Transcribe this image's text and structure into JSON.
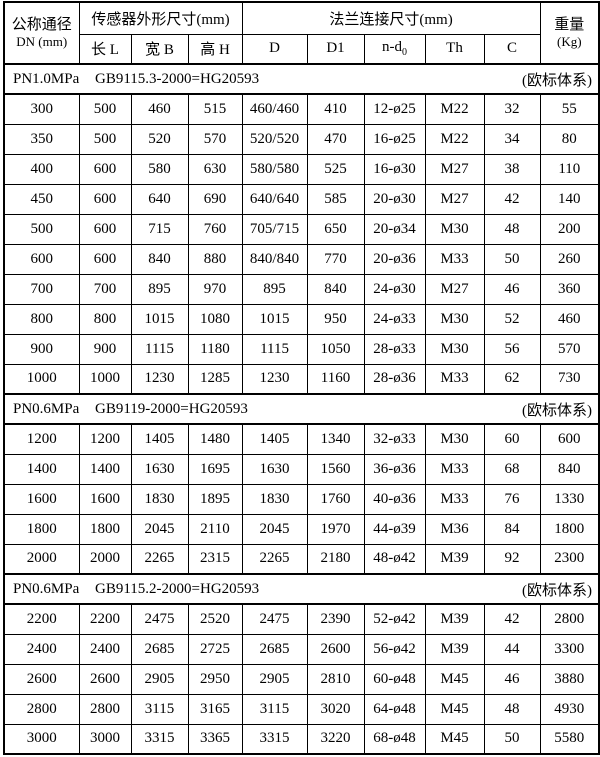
{
  "table": {
    "header": {
      "dn_title": "公称通径",
      "dn_sub": "DN (mm)",
      "sensor_group": "传感器外形尺寸(mm)",
      "flange_group": "法兰连接尺寸(mm)",
      "weight_title": "重量",
      "weight_sub": "(Kg)",
      "length": "长 L",
      "width": "宽 B",
      "height": "高 H",
      "d": "D",
      "d1": "D1",
      "ndo_main": "n-d",
      "ndo_sub": "0",
      "th": "Th",
      "c": "C"
    },
    "sections": [
      {
        "pn": "PN1.0MPa",
        "standard": "GB9115.3-2000=HG20593",
        "system": "(欧标体系)",
        "rows": [
          [
            "300",
            "500",
            "460",
            "515",
            "460/460",
            "410",
            "12-ø25",
            "M22",
            "32",
            "55"
          ],
          [
            "350",
            "500",
            "520",
            "570",
            "520/520",
            "470",
            "16-ø25",
            "M22",
            "34",
            "80"
          ],
          [
            "400",
            "600",
            "580",
            "630",
            "580/580",
            "525",
            "16-ø30",
            "M27",
            "38",
            "110"
          ],
          [
            "450",
            "600",
            "640",
            "690",
            "640/640",
            "585",
            "20-ø30",
            "M27",
            "42",
            "140"
          ],
          [
            "500",
            "600",
            "715",
            "760",
            "705/715",
            "650",
            "20-ø34",
            "M30",
            "48",
            "200"
          ],
          [
            "600",
            "600",
            "840",
            "880",
            "840/840",
            "770",
            "20-ø36",
            "M33",
            "50",
            "260"
          ],
          [
            "700",
            "700",
            "895",
            "970",
            "895",
            "840",
            "24-ø30",
            "M27",
            "46",
            "360"
          ],
          [
            "800",
            "800",
            "1015",
            "1080",
            "1015",
            "950",
            "24-ø33",
            "M30",
            "52",
            "460"
          ],
          [
            "900",
            "900",
            "1115",
            "1180",
            "1115",
            "1050",
            "28-ø33",
            "M30",
            "56",
            "570"
          ],
          [
            "1000",
            "1000",
            "1230",
            "1285",
            "1230",
            "1160",
            "28-ø36",
            "M33",
            "62",
            "730"
          ]
        ]
      },
      {
        "pn": "PN0.6MPa",
        "standard": "GB9119-2000=HG20593",
        "system": "(欧标体系)",
        "rows": [
          [
            "1200",
            "1200",
            "1405",
            "1480",
            "1405",
            "1340",
            "32-ø33",
            "M30",
            "60",
            "600"
          ],
          [
            "1400",
            "1400",
            "1630",
            "1695",
            "1630",
            "1560",
            "36-ø36",
            "M33",
            "68",
            "840"
          ],
          [
            "1600",
            "1600",
            "1830",
            "1895",
            "1830",
            "1760",
            "40-ø36",
            "M33",
            "76",
            "1330"
          ],
          [
            "1800",
            "1800",
            "2045",
            "2110",
            "2045",
            "1970",
            "44-ø39",
            "M36",
            "84",
            "1800"
          ],
          [
            "2000",
            "2000",
            "2265",
            "2315",
            "2265",
            "2180",
            "48-ø42",
            "M39",
            "92",
            "2300"
          ]
        ]
      },
      {
        "pn": "PN0.6MPa",
        "standard": "GB9115.2-2000=HG20593",
        "system": "(欧标体系)",
        "rows": [
          [
            "2200",
            "2200",
            "2475",
            "2520",
            "2475",
            "2390",
            "52-ø42",
            "M39",
            "42",
            "2800"
          ],
          [
            "2400",
            "2400",
            "2685",
            "2725",
            "2685",
            "2600",
            "56-ø42",
            "M39",
            "44",
            "3300"
          ],
          [
            "2600",
            "2600",
            "2905",
            "2950",
            "2905",
            "2810",
            "60-ø48",
            "M45",
            "46",
            "3880"
          ],
          [
            "2800",
            "2800",
            "3115",
            "3165",
            "3115",
            "3020",
            "64-ø48",
            "M45",
            "48",
            "4930"
          ],
          [
            "3000",
            "3000",
            "3315",
            "3365",
            "3315",
            "3220",
            "68-ø48",
            "M45",
            "50",
            "5580"
          ]
        ]
      }
    ]
  }
}
